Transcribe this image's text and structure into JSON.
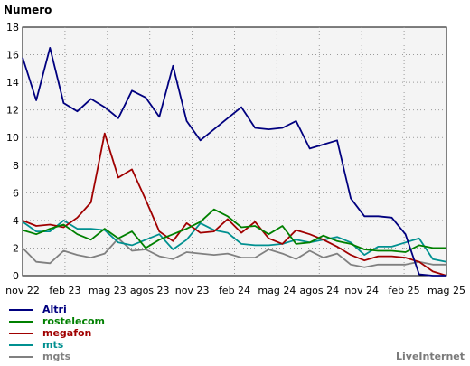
{
  "chart_data": {
    "type": "line",
    "title": "",
    "ylabel": "Numero",
    "xlabel": "",
    "ylim": [
      0,
      18
    ],
    "yticks": [
      0,
      2,
      4,
      6,
      8,
      10,
      12,
      14,
      16,
      18
    ],
    "x_tick_labels": [
      "nov 22",
      "feb 23",
      "mag 23",
      "agos 23",
      "nov 23",
      "feb 24",
      "mag 24",
      "agos 24",
      "nov 24",
      "feb 25",
      "mag 25"
    ],
    "x_count": 32,
    "grid": true,
    "legend_position": "bottom-left",
    "series": [
      {
        "name": "Altri",
        "color": "#00007f",
        "values": [
          15.8,
          12.7,
          16.5,
          12.5,
          11.9,
          12.8,
          12.2,
          11.4,
          13.4,
          12.9,
          11.5,
          15.2,
          11.2,
          9.8,
          10.6,
          11.4,
          12.2,
          10.7,
          10.6,
          10.7,
          11.2,
          9.2,
          9.5,
          9.8,
          5.6,
          4.3,
          4.3,
          4.2,
          3.0,
          0.1,
          0.0,
          0.0
        ]
      },
      {
        "name": "rostelecom",
        "color": "#008000",
        "values": [
          3.3,
          3.0,
          3.4,
          3.7,
          3.0,
          2.6,
          3.4,
          2.7,
          3.2,
          2.0,
          2.6,
          3.0,
          3.4,
          3.9,
          4.8,
          4.3,
          3.5,
          3.6,
          3.0,
          3.6,
          2.3,
          2.4,
          2.9,
          2.5,
          2.3,
          1.9,
          1.8,
          1.8,
          1.7,
          2.2,
          2.0,
          2.0
        ]
      },
      {
        "name": "megafon",
        "color": "#a00000",
        "values": [
          4.0,
          3.6,
          3.7,
          3.5,
          4.2,
          5.3,
          10.3,
          7.1,
          7.7,
          5.5,
          3.2,
          2.5,
          3.8,
          3.1,
          3.2,
          4.1,
          3.1,
          3.9,
          2.7,
          2.3,
          3.3,
          3.0,
          2.6,
          2.1,
          1.5,
          1.1,
          1.4,
          1.4,
          1.3,
          1.0,
          0.3,
          0.0
        ]
      },
      {
        "name": "mts",
        "color": "#009090",
        "values": [
          3.9,
          3.2,
          3.2,
          4.0,
          3.4,
          3.4,
          3.3,
          2.4,
          2.2,
          2.6,
          3.0,
          1.9,
          2.6,
          3.8,
          3.3,
          3.1,
          2.3,
          2.2,
          2.2,
          2.3,
          2.6,
          2.4,
          2.6,
          2.8,
          2.4,
          1.5,
          2.1,
          2.1,
          2.4,
          2.7,
          1.2,
          1.0
        ]
      },
      {
        "name": "mgts",
        "color": "#808080",
        "values": [
          2.0,
          1.0,
          0.9,
          1.8,
          1.5,
          1.3,
          1.6,
          2.7,
          1.8,
          1.9,
          1.4,
          1.2,
          1.7,
          1.6,
          1.5,
          1.6,
          1.3,
          1.3,
          1.9,
          1.6,
          1.2,
          1.8,
          1.3,
          1.6,
          0.8,
          0.6,
          0.8,
          0.8,
          0.8,
          1.0,
          0.8,
          0.8
        ]
      }
    ]
  },
  "watermark": "LiveInternet"
}
